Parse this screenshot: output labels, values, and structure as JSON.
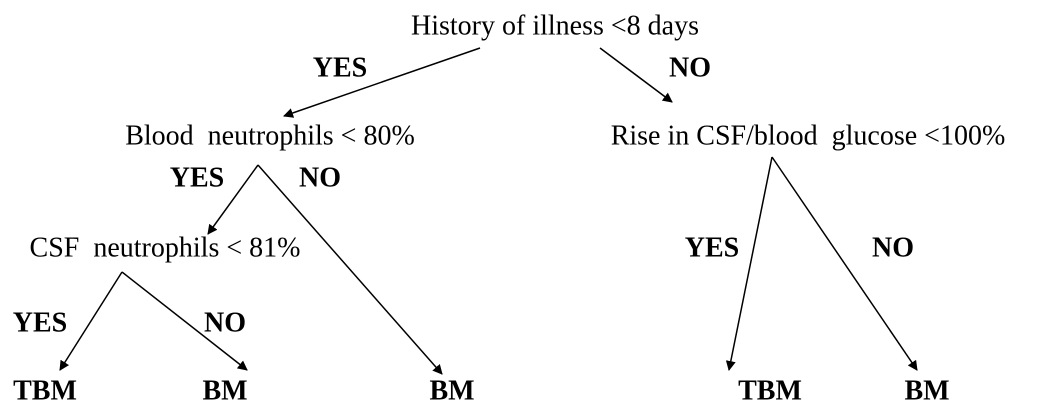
{
  "nodes": [
    {
      "label": "History of illness <8 days"
    },
    {
      "label": "Blood  neutrophils < 80%"
    },
    {
      "label": "Rise in CSF/blood  glucose <100%"
    },
    {
      "label": "CSF  neutrophils < 81%"
    },
    {
      "label": "TBM"
    },
    {
      "label": "BM"
    },
    {
      "label": "BM"
    },
    {
      "label": "TBM"
    },
    {
      "label": "BM"
    }
  ],
  "edge_labels": [
    "YES",
    "NO",
    "YES",
    "NO",
    "YES",
    "NO",
    "YES",
    "NO"
  ]
}
